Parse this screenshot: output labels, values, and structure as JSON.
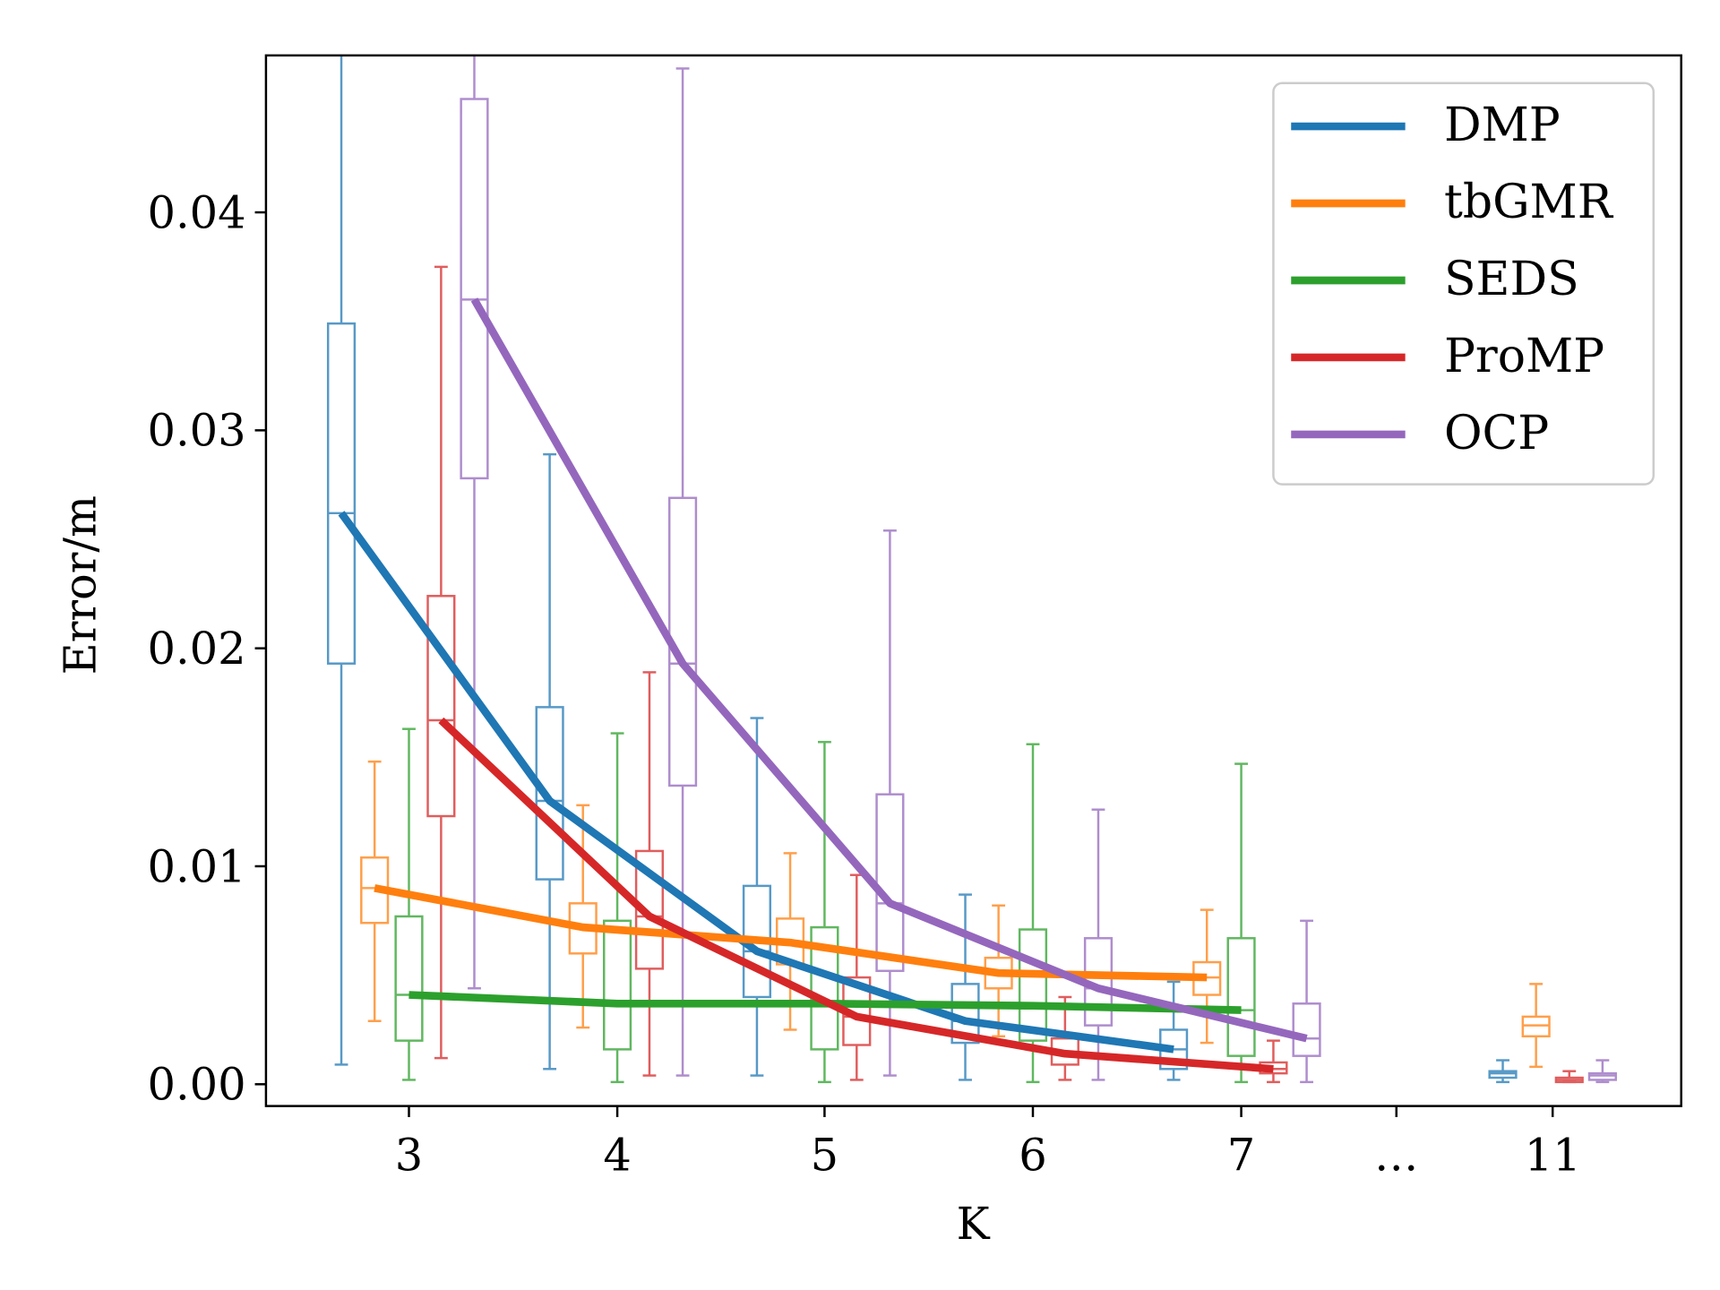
{
  "chart_data": {
    "type": "box",
    "xlabel": "K",
    "ylabel": "Error/m",
    "categories": [
      "3",
      "4",
      "5",
      "6",
      "7",
      "…",
      "11"
    ],
    "ylim": [
      -0.001,
      0.0472
    ],
    "yticks": [
      {
        "value": 0,
        "label": "0.00"
      },
      0.01,
      0.02,
      0.03,
      0.04
    ],
    "legend": "upper right",
    "series": [
      {
        "name": "DMP",
        "color": "#1f77b4",
        "whislo": [
          0.0009,
          0.0007,
          0.0004,
          0.0002,
          0.0002,
          null,
          0.0001
        ],
        "q1": [
          0.0193,
          0.0094,
          0.004,
          0.0019,
          0.0007,
          null,
          0.0003
        ],
        "med": [
          0.0262,
          0.013,
          0.0061,
          0.0029,
          0.0016,
          null,
          0.0005
        ],
        "q3": [
          0.0349,
          0.0173,
          0.0091,
          0.0046,
          0.0025,
          null,
          0.0006
        ],
        "whishi": [
          0.048,
          0.0289,
          0.0168,
          0.0087,
          0.0047,
          null,
          0.0011
        ]
      },
      {
        "name": "tbGMR",
        "color": "#ff7f0e",
        "whislo": [
          0.0029,
          0.0026,
          0.0025,
          0.0022,
          0.0019,
          null,
          0.0008
        ],
        "q1": [
          0.0074,
          0.006,
          0.0055,
          0.0044,
          0.0041,
          null,
          0.0022
        ],
        "med": [
          0.009,
          0.0072,
          0.0065,
          0.0051,
          0.0049,
          null,
          0.0027
        ],
        "q3": [
          0.0104,
          0.0083,
          0.0076,
          0.0058,
          0.0056,
          null,
          0.0031
        ],
        "whishi": [
          0.0148,
          0.0128,
          0.0106,
          0.0082,
          0.008,
          null,
          0.0046
        ]
      },
      {
        "name": "SEDS",
        "color": "#2ca02c",
        "whislo": [
          0.0002,
          0.0001,
          0.0001,
          0.0001,
          0.0001,
          null,
          null
        ],
        "q1": [
          0.002,
          0.0016,
          0.0016,
          0.002,
          0.0013,
          null,
          null
        ],
        "med": [
          0.0041,
          0.0037,
          0.0037,
          0.0036,
          0.0034,
          null,
          null
        ],
        "q3": [
          0.0077,
          0.0075,
          0.0072,
          0.0071,
          0.0067,
          null,
          null
        ],
        "whishi": [
          0.0163,
          0.0161,
          0.0157,
          0.0156,
          0.0147,
          null,
          null
        ]
      },
      {
        "name": "ProMP",
        "color": "#d62728",
        "whislo": [
          0.0012,
          0.0004,
          0.0002,
          0.0002,
          0.0001,
          null,
          0.0001
        ],
        "q1": [
          0.0123,
          0.0053,
          0.0018,
          0.0009,
          0.0005,
          null,
          0.0001
        ],
        "med": [
          0.0167,
          0.0077,
          0.0031,
          0.0014,
          0.0007,
          null,
          0.0002
        ],
        "q3": [
          0.0224,
          0.0107,
          0.0049,
          0.0021,
          0.001,
          null,
          0.0003
        ],
        "whishi": [
          0.0375,
          0.0189,
          0.0096,
          0.004,
          0.002,
          null,
          0.0006
        ]
      },
      {
        "name": "OCP",
        "color": "#9467bd",
        "whislo": [
          0.0044,
          0.0004,
          0.0004,
          0.0002,
          0.0001,
          null,
          0.0001
        ],
        "q1": [
          0.0278,
          0.0137,
          0.0052,
          0.0027,
          0.0013,
          null,
          0.0002
        ],
        "med": [
          0.036,
          0.0193,
          0.0083,
          0.0044,
          0.0021,
          null,
          0.0004
        ],
        "q3": [
          0.0452,
          0.0269,
          0.0133,
          0.0067,
          0.0037,
          null,
          0.0005
        ],
        "whishi": [
          0.048,
          0.0466,
          0.0254,
          0.0126,
          0.0075,
          null,
          0.0011
        ]
      }
    ]
  }
}
